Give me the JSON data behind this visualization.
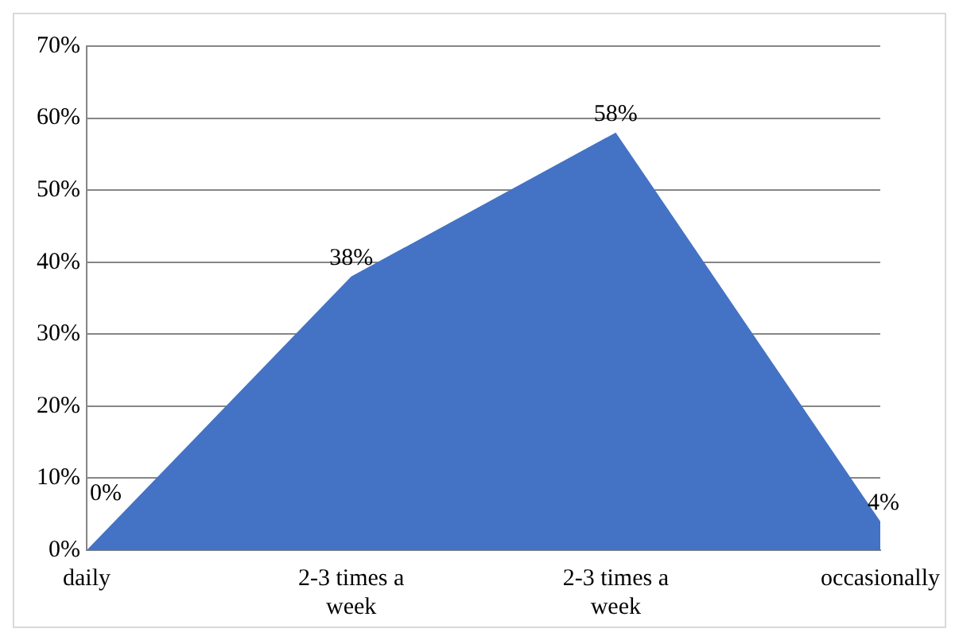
{
  "chart_data": {
    "type": "area",
    "categories": [
      "daily",
      "2-3 times a week",
      "2-3 times a week",
      "occasionally"
    ],
    "series": [
      {
        "color": "#4472c4",
        "values": [
          0,
          38,
          58,
          4
        ],
        "value_labels": [
          "0%",
          "38%",
          "58%",
          "4%"
        ]
      }
    ],
    "ylim": [
      0,
      70
    ],
    "yticks": [
      {
        "value": 0,
        "label": "0%"
      },
      {
        "value": 10,
        "label": "10%"
      },
      {
        "value": 20,
        "label": "20%"
      },
      {
        "value": 30,
        "label": "30%"
      },
      {
        "value": 40,
        "label": "40%"
      },
      {
        "value": 50,
        "label": "50%"
      },
      {
        "value": 60,
        "label": "60%"
      },
      {
        "value": 70,
        "label": "70%"
      }
    ],
    "grid": "y",
    "legend": false
  }
}
